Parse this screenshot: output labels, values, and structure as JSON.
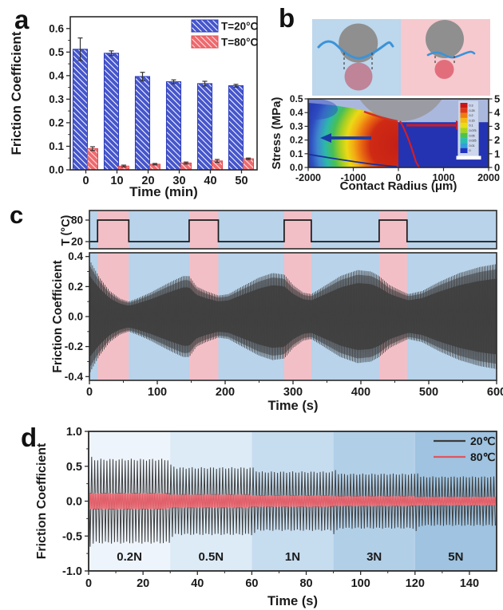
{
  "figure": {
    "background": "#ffffff",
    "panels": [
      {
        "letter": "a"
      },
      {
        "letter": "b"
      },
      {
        "letter": "c"
      },
      {
        "letter": "d"
      }
    ]
  },
  "chart_data": [
    {
      "panel": "a",
      "type": "bar",
      "xlabel": "Time (min)",
      "ylabel": "Friction Coefficient",
      "categories": [
        "0",
        "10",
        "20",
        "30",
        "40",
        "50"
      ],
      "ylim": [
        0,
        0.65
      ],
      "ytick_values": [
        0.0,
        0.1,
        0.2,
        0.3,
        0.4,
        0.5,
        0.6
      ],
      "ytick_labels": [
        "0.0",
        "0.1",
        "0.2",
        "0.3",
        "0.4",
        "0.5",
        "0.6"
      ],
      "series": [
        {
          "name": "T=20°C",
          "fill": "#4656cc",
          "border": "#2f3fbe",
          "values": [
            0.512,
            0.495,
            0.396,
            0.374,
            0.366,
            0.357
          ],
          "errors": [
            0.048,
            0.01,
            0.018,
            0.008,
            0.01,
            0.006
          ]
        },
        {
          "name": "T=80°C",
          "fill": "#ee6a6e",
          "border": "#dd4a50",
          "values": [
            0.09,
            0.016,
            0.024,
            0.029,
            0.038,
            0.047
          ],
          "errors": [
            0.008,
            0.004,
            0.003,
            0.004,
            0.006,
            0.003
          ]
        }
      ],
      "legend_position": "top-right",
      "grid": false
    },
    {
      "panel": "b",
      "type": "heatmap",
      "xlabel": "Contact Radius (μm)",
      "ylabel": "Stress (MPa)",
      "xlim": [
        -2000,
        2000
      ],
      "xtick_labels": [
        "-2000",
        "-1000",
        "0",
        "1000",
        "2000"
      ],
      "ylim": [
        0,
        0.5
      ],
      "ytick_labels": [
        "0.0",
        "0.1",
        "0.2",
        "0.3",
        "0.4",
        "0.5"
      ],
      "right_ytick_labels": [
        "0",
        "1",
        "2",
        "3",
        "4",
        "5"
      ],
      "colorbar_labels": [
        "0.3",
        "0.25",
        "0.2",
        "0.15",
        "0.1",
        "0.075",
        "0.05",
        "0.025",
        "0.01",
        "0"
      ],
      "colorbar_colors": [
        "#cc1414",
        "#e03614",
        "#ef7c10",
        "#f3b912",
        "#e8dc16",
        "#a6d41f",
        "#4cc44c",
        "#2abfb0",
        "#33a0dc",
        "#2333c0"
      ],
      "plot_colors": {
        "background": "#abb8de",
        "right_half_low_stress": "#2433b2",
        "ball": "#9a9aa0",
        "left_arrow": "#1a3ba6",
        "right_arrow": "#c01f30",
        "red_curve": "#cf1f2a",
        "blue_curve": "#16309e"
      },
      "annotations": [
        "blue-arrow-left",
        "red-arrow-right",
        "red-contact-pressure-curve",
        "blue-low-stress-curve",
        "white-scale-bar"
      ],
      "schematic": {
        "left_background": "#bdd7ec",
        "right_background": "#f5c9ce",
        "ball_color": "#8f8f8f",
        "water_line_color": "#3b93d8",
        "left_contact_color": "#bf8498",
        "right_contact_color": "#e26e7c",
        "meaning_left": "large contact area (cold)",
        "meaning_right": "small contact area (hot)"
      }
    },
    {
      "panel": "c",
      "type": "line",
      "xlabel": "Time (s)",
      "ylabel": "Friction Coefficient",
      "xlim": [
        0,
        600
      ],
      "xtick_labels": [
        "0",
        "100",
        "200",
        "300",
        "400",
        "500",
        "600"
      ],
      "ylim": [
        -0.425,
        0.425
      ],
      "ytick_values": [
        0.4,
        0.2,
        0.0,
        -0.2,
        -0.4
      ],
      "ytick_labels": [
        "0.4",
        "0.2",
        "0.0",
        "-0.2",
        "-0.4"
      ],
      "temperature_subplot": {
        "ylabel": "T (°C)",
        "ytick_labels": [
          "80",
          "20"
        ],
        "low": 20,
        "high": 80,
        "hot_bands": [
          [
            12,
            58
          ],
          [
            147,
            190
          ],
          [
            287,
            327
          ],
          [
            427,
            468
          ]
        ]
      },
      "background_cold": "#b8d3ea",
      "background_hot": "#f3bfc7",
      "trace_color": "#3f3f3f",
      "oscillation_half_period_s": 1.15,
      "friction_envelope": [
        [
          0,
          0.38
        ],
        [
          6,
          0.33
        ],
        [
          15,
          0.26
        ],
        [
          30,
          0.17
        ],
        [
          45,
          0.12
        ],
        [
          58,
          0.1
        ],
        [
          70,
          0.12
        ],
        [
          90,
          0.16
        ],
        [
          115,
          0.22
        ],
        [
          138,
          0.27
        ],
        [
          147,
          0.27
        ],
        [
          158,
          0.2
        ],
        [
          172,
          0.17
        ],
        [
          190,
          0.14
        ],
        [
          205,
          0.15
        ],
        [
          225,
          0.2
        ],
        [
          250,
          0.26
        ],
        [
          270,
          0.29
        ],
        [
          287,
          0.28
        ],
        [
          300,
          0.21
        ],
        [
          315,
          0.16
        ],
        [
          327,
          0.15
        ],
        [
          345,
          0.2
        ],
        [
          370,
          0.27
        ],
        [
          395,
          0.31
        ],
        [
          415,
          0.3
        ],
        [
          427,
          0.27
        ],
        [
          442,
          0.21
        ],
        [
          460,
          0.17
        ],
        [
          470,
          0.15
        ],
        [
          490,
          0.17
        ],
        [
          515,
          0.23
        ],
        [
          545,
          0.29
        ],
        [
          575,
          0.33
        ],
        [
          600,
          0.35
        ]
      ]
    },
    {
      "panel": "d",
      "type": "line",
      "xlabel": "Time (s)",
      "ylabel": "Friction Coefficient",
      "xlim": [
        0,
        150
      ],
      "xtick_labels": [
        "0",
        "20",
        "40",
        "60",
        "80",
        "100",
        "120",
        "140"
      ],
      "ylim": [
        -1.0,
        1.0
      ],
      "ytick_values": [
        1.0,
        0.5,
        0.0,
        -0.5,
        -1.0
      ],
      "ytick_labels": [
        "1.0",
        "0.5",
        "0.0",
        "-0.5",
        "-1.0"
      ],
      "load_bands": [
        {
          "label": "0.2N",
          "range": [
            0,
            30
          ],
          "color": "#eef4fb"
        },
        {
          "label": "0.5N",
          "range": [
            30,
            60
          ],
          "color": "#dcebf6"
        },
        {
          "label": "1N",
          "range": [
            60,
            90
          ],
          "color": "#c6dcef"
        },
        {
          "label": "3N",
          "range": [
            90,
            120
          ],
          "color": "#b2cfe8"
        },
        {
          "label": "5N",
          "range": [
            120,
            150
          ],
          "color": "#9fc3e0"
        }
      ],
      "series": [
        {
          "name": "20℃",
          "color": "#3c3c3c",
          "half_period_s": 0.56,
          "amplitude_per_band": [
            0.6,
            0.48,
            0.42,
            0.39,
            0.35
          ],
          "spike_at_band_start": [
            0.67,
            0.53,
            0.5,
            0.48,
            0.45
          ]
        },
        {
          "name": "80℃",
          "color": "#e05560",
          "band_fill": "#ee8e95",
          "half_period_s": 0.31,
          "amplitude_per_band": [
            0.12,
            0.1,
            0.085,
            0.075,
            0.065
          ]
        }
      ],
      "legend_position": "top-right"
    }
  ]
}
